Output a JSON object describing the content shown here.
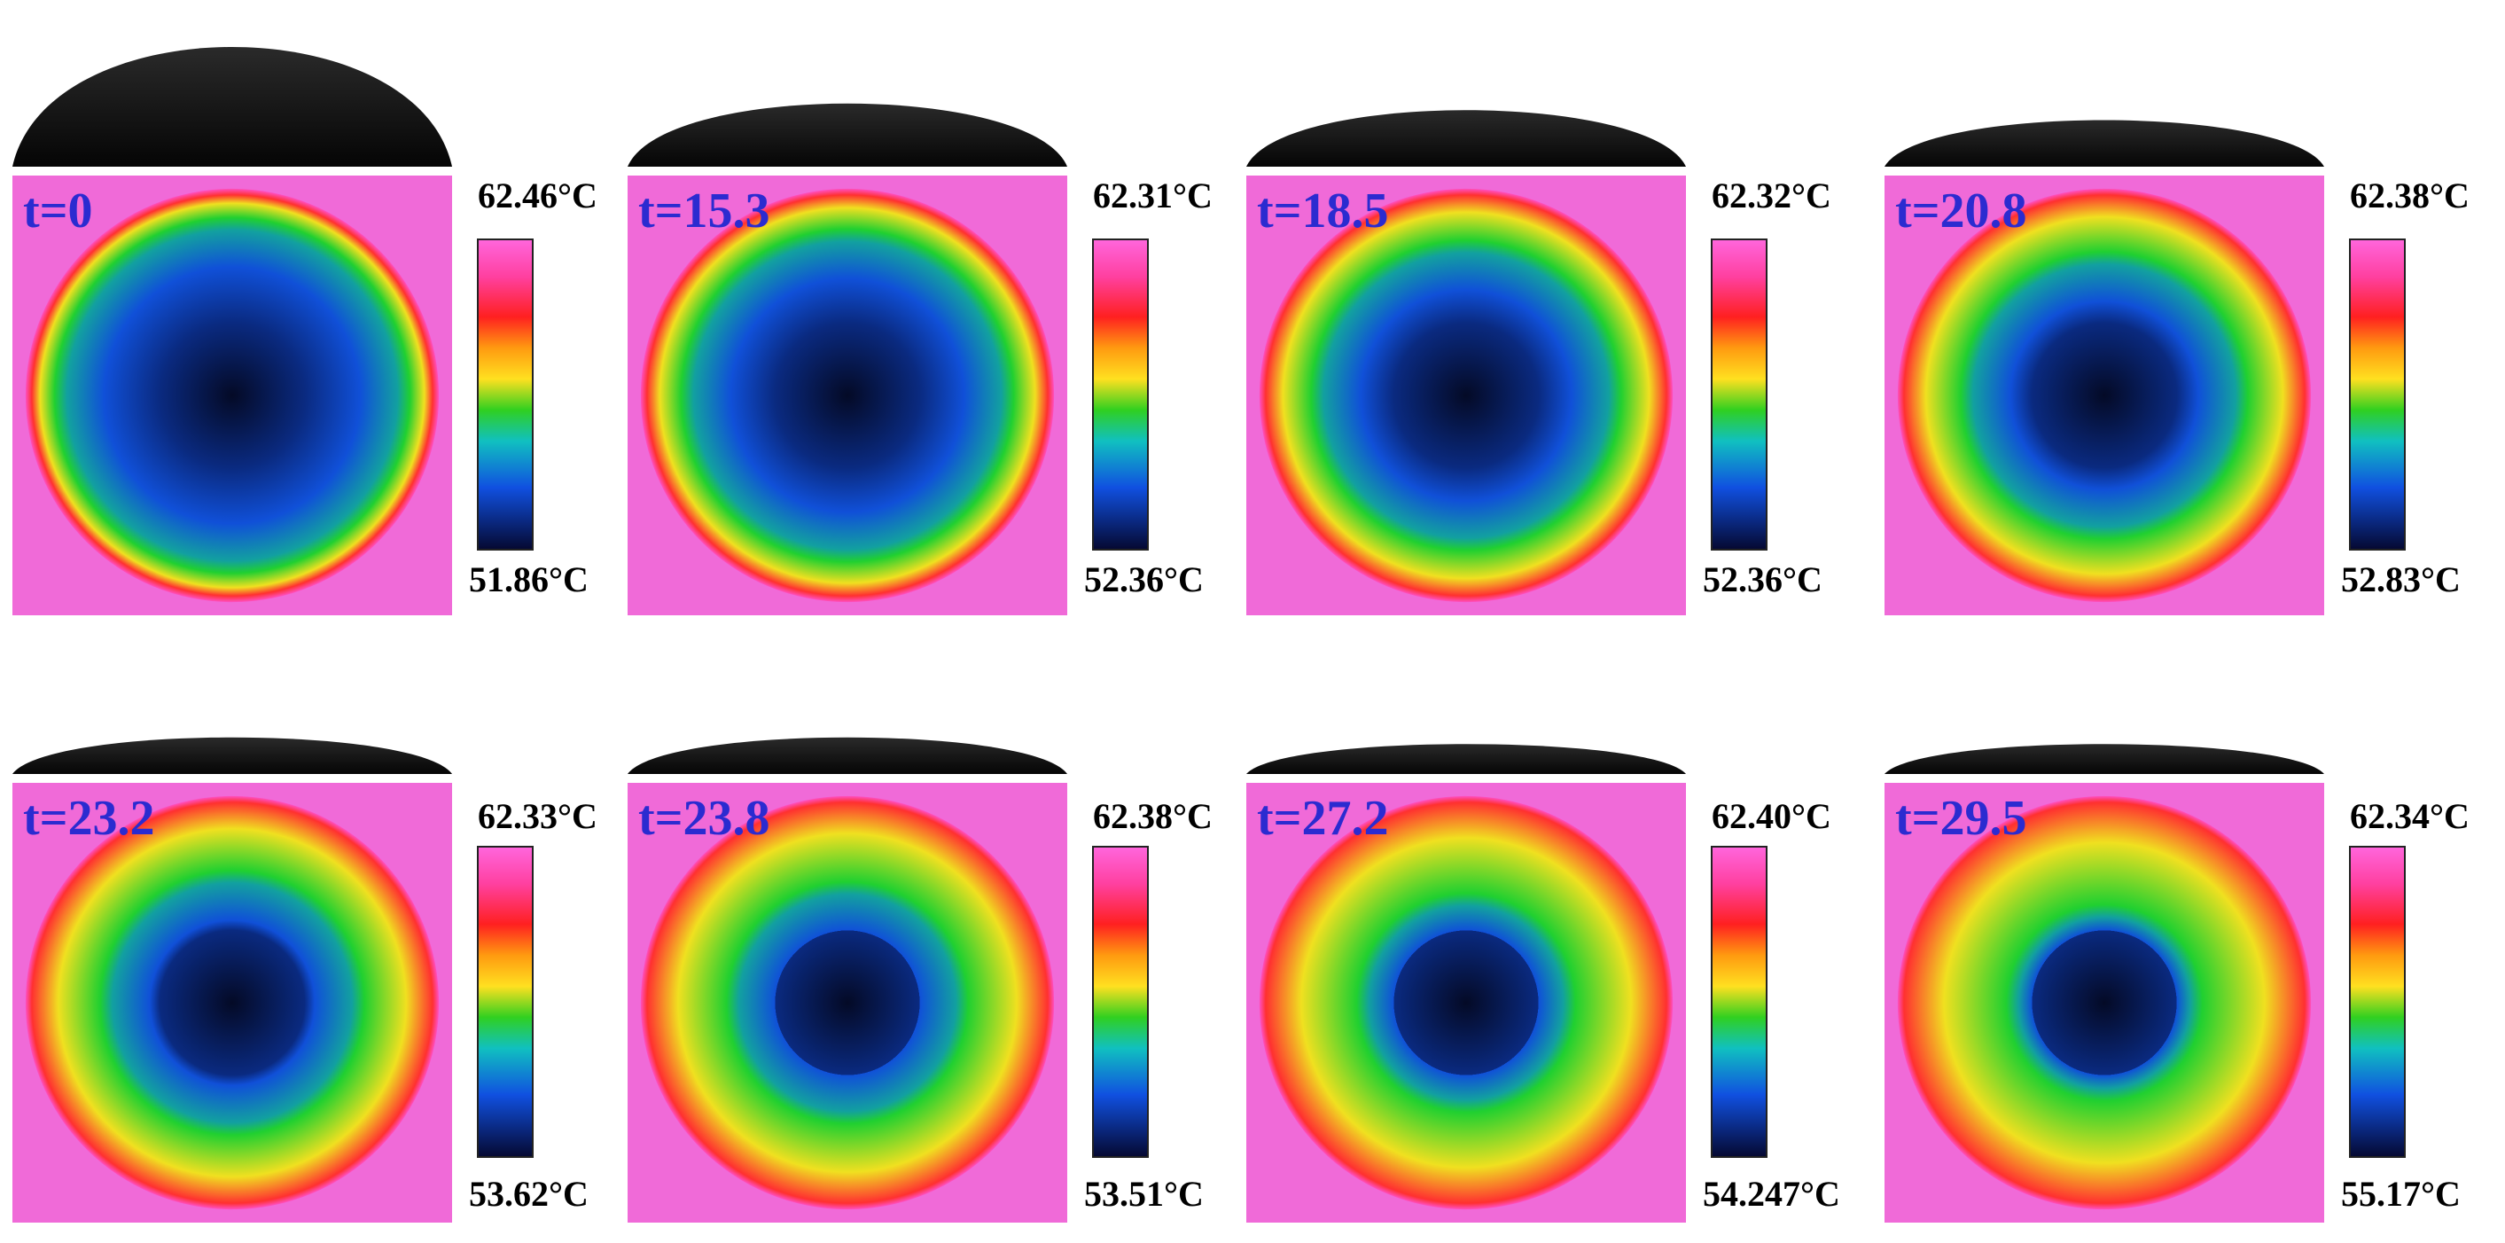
{
  "panels": [
    {
      "time": "t=0",
      "max": "62.46°C",
      "min": "51.86°C"
    },
    {
      "time": "t=15.3",
      "max": "62.31°C",
      "min": "52.36°C"
    },
    {
      "time": "t=18.5",
      "max": "62.32°C",
      "min": "52.36°C"
    },
    {
      "time": "t=20.8",
      "max": "62.38°C",
      "min": "52.83°C"
    },
    {
      "time": "t=23.2",
      "max": "62.33°C",
      "min": "53.62°C"
    },
    {
      "time": "t=23.8",
      "max": "62.38°C",
      "min": "53.51°C"
    },
    {
      "time": "t=27.2",
      "max": "62.40°C",
      "min": "54.247°C"
    },
    {
      "time": "t=29.5",
      "max": "62.34°C",
      "min": "55.17°C"
    }
  ]
}
